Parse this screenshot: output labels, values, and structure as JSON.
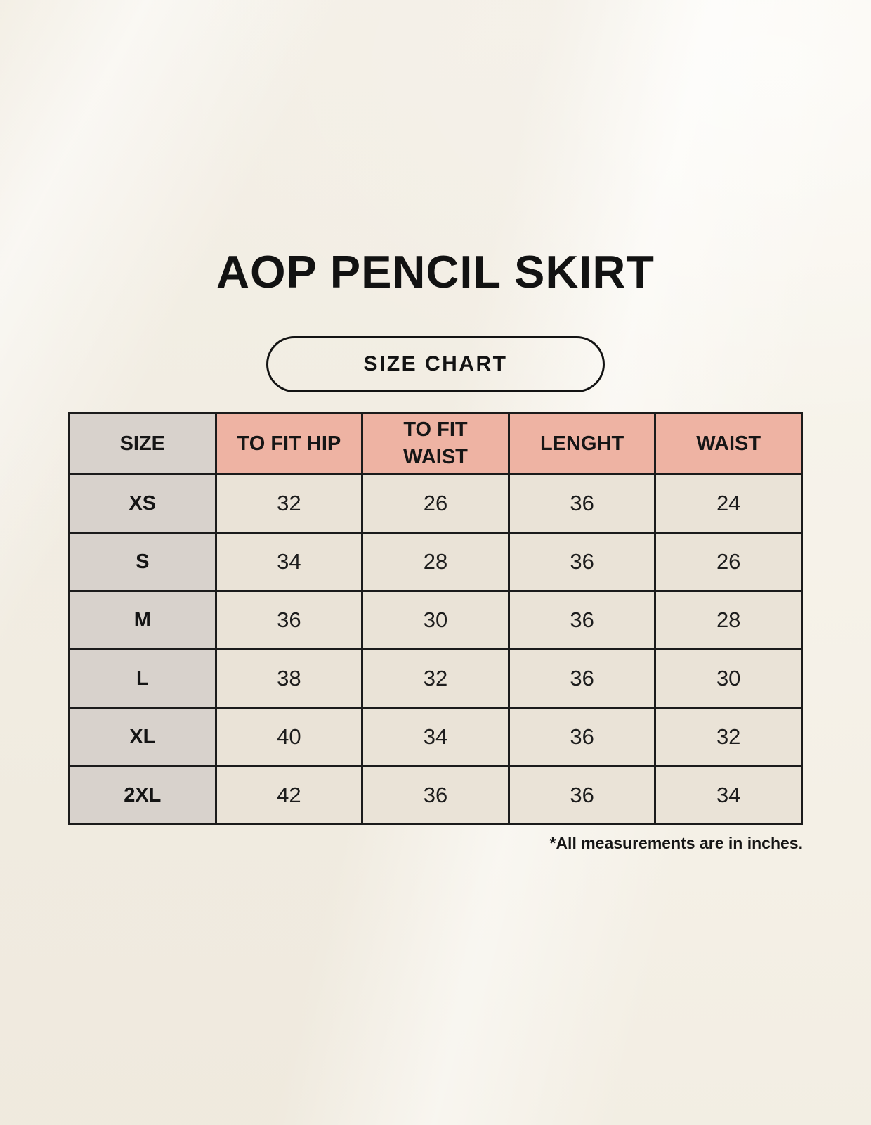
{
  "page": {
    "title": "AOP PENCIL SKIRT",
    "badge_label": "SIZE CHART",
    "footnote": "*All measurements are in inches."
  },
  "chart_data": {
    "type": "table",
    "title": "AOP PENCIL SKIRT",
    "subtitle": "SIZE CHART",
    "columns": [
      "SIZE",
      "TO FIT HIP",
      "TO FIT WAIST",
      "LENGHT",
      "WAIST"
    ],
    "rows": [
      [
        "XS",
        32,
        26,
        36,
        24
      ],
      [
        "S",
        34,
        28,
        36,
        26
      ],
      [
        "M",
        36,
        30,
        36,
        28
      ],
      [
        "L",
        38,
        32,
        36,
        30
      ],
      [
        "XL",
        40,
        34,
        36,
        32
      ],
      [
        "2XL",
        42,
        36,
        36,
        34
      ]
    ],
    "note": "*All measurements are in inches.",
    "units": "inches"
  },
  "colors": {
    "page_background": "#f7f3e9",
    "header_accent_pink": "#eeb3a3",
    "size_column_gray": "#d8d2cc",
    "cell_cream": "#eae3d7",
    "table_border": "#1b1b1b",
    "text": "#141414"
  }
}
